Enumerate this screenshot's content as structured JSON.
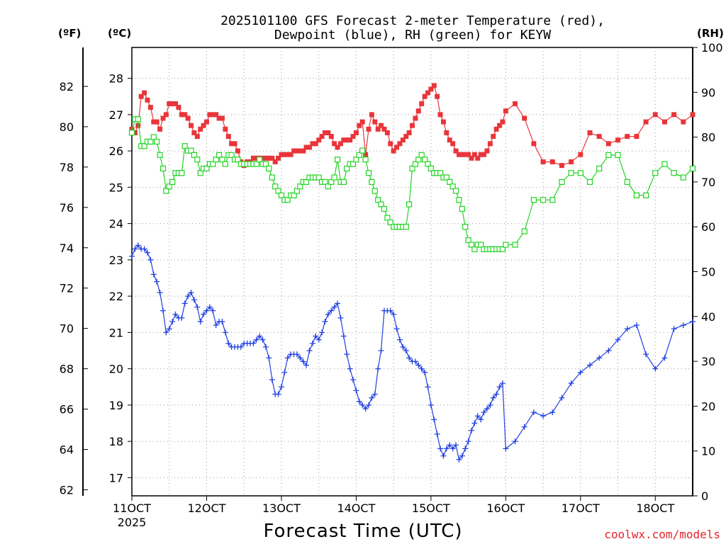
{
  "header": {
    "title_line1": "2025101100 GFS Forecast 2-meter Temperature (red),",
    "title_line2": "Dewpoint (blue), RH (green) for KEYW"
  },
  "axes": {
    "left_unit_f": "(ºF)",
    "left_unit_c": "(ºC)",
    "right_unit_rh": "(RH)",
    "x_label": "Forecast Time (UTC)",
    "year_label": "2025"
  },
  "footer": {
    "credit": "coolwx.com/models"
  },
  "colors": {
    "temperature": "#e8353a",
    "dewpoint": "#2040e0",
    "rh": "#22d422"
  },
  "chart_data": {
    "type": "line",
    "title": "2025101100 GFS Forecast 2-meter Temperature (red), Dewpoint (blue), RH (green) for KEYW",
    "xlabel": "Forecast Time (UTC)",
    "x_units": "days since 11 Oct 2025 00 UTC",
    "xlim": [
      0,
      7.5
    ],
    "x_ticks": [
      {
        "x": 0,
        "label": "11OCT"
      },
      {
        "x": 1,
        "label": "12OCT"
      },
      {
        "x": 2,
        "label": "13OCT"
      },
      {
        "x": 3,
        "label": "14OCT"
      },
      {
        "x": 4,
        "label": "15OCT"
      },
      {
        "x": 5,
        "label": "16OCT"
      },
      {
        "x": 6,
        "label": "17OCT"
      },
      {
        "x": 7,
        "label": "18OCT"
      }
    ],
    "y_celsius": {
      "ylim": [
        16.5,
        28.85
      ],
      "ticks": [
        17,
        18,
        19,
        20,
        21,
        22,
        23,
        24,
        25,
        26,
        27,
        28
      ]
    },
    "y_fahrenheit": {
      "ticks": [
        62,
        64,
        66,
        68,
        70,
        72,
        74,
        76,
        78,
        80,
        82
      ]
    },
    "y_rh": {
      "ylim": [
        0,
        100
      ],
      "ticks": [
        0,
        10,
        20,
        30,
        40,
        50,
        60,
        70,
        80,
        90,
        100
      ]
    },
    "series": [
      {
        "name": "Temperature",
        "units": "C",
        "marker": "filled-square",
        "x": [
          0,
          0.042,
          0.083,
          0.125,
          0.167,
          0.208,
          0.25,
          0.292,
          0.333,
          0.375,
          0.417,
          0.458,
          0.5,
          0.542,
          0.583,
          0.625,
          0.667,
          0.708,
          0.75,
          0.792,
          0.833,
          0.875,
          0.917,
          0.958,
          1.0,
          1.042,
          1.083,
          1.125,
          1.167,
          1.208,
          1.25,
          1.292,
          1.333,
          1.375,
          1.417,
          1.458,
          1.5,
          1.542,
          1.583,
          1.625,
          1.667,
          1.708,
          1.75,
          1.792,
          1.833,
          1.875,
          1.917,
          1.958,
          2.0,
          2.042,
          2.083,
          2.125,
          2.167,
          2.208,
          2.25,
          2.292,
          2.333,
          2.375,
          2.417,
          2.458,
          2.5,
          2.542,
          2.583,
          2.625,
          2.667,
          2.708,
          2.75,
          2.792,
          2.833,
          2.875,
          2.917,
          2.958,
          3.0,
          3.042,
          3.083,
          3.125,
          3.167,
          3.208,
          3.25,
          3.292,
          3.333,
          3.375,
          3.417,
          3.458,
          3.5,
          3.542,
          3.583,
          3.625,
          3.667,
          3.708,
          3.75,
          3.792,
          3.833,
          3.875,
          3.917,
          3.958,
          4.0,
          4.042,
          4.083,
          4.125,
          4.167,
          4.208,
          4.25,
          4.292,
          4.333,
          4.375,
          4.417,
          4.458,
          4.5,
          4.542,
          4.583,
          4.625,
          4.667,
          4.708,
          4.75,
          4.792,
          4.833,
          4.875,
          4.917,
          4.958,
          5.0,
          5.125,
          5.25,
          5.375,
          5.5,
          5.625,
          5.75,
          5.875,
          6.0,
          6.125,
          6.25,
          6.375,
          6.5,
          6.625,
          6.75,
          6.875,
          7.0,
          7.125,
          7.25,
          7.375,
          7.5
        ],
        "values": [
          26.6,
          26.5,
          26.7,
          27.5,
          27.6,
          27.4,
          27.2,
          26.8,
          26.8,
          26.6,
          26.9,
          27.0,
          27.3,
          27.3,
          27.3,
          27.2,
          27.0,
          27.0,
          26.9,
          26.7,
          26.5,
          26.4,
          26.6,
          26.7,
          26.8,
          27.0,
          27.0,
          27.0,
          26.9,
          26.9,
          26.6,
          26.4,
          26.2,
          26.2,
          26.0,
          25.7,
          25.6,
          25.7,
          25.7,
          25.8,
          25.8,
          25.8,
          25.8,
          25.8,
          25.8,
          25.8,
          25.7,
          25.8,
          25.9,
          25.9,
          25.9,
          25.9,
          26.0,
          26.0,
          26.0,
          26.0,
          26.1,
          26.1,
          26.2,
          26.2,
          26.3,
          26.4,
          26.5,
          26.5,
          26.4,
          26.2,
          26.1,
          26.2,
          26.3,
          26.3,
          26.3,
          26.4,
          26.5,
          26.7,
          26.8,
          25.9,
          26.6,
          27.0,
          26.8,
          26.6,
          26.7,
          26.6,
          26.5,
          26.2,
          26.0,
          26.1,
          26.2,
          26.3,
          26.4,
          26.5,
          26.7,
          26.9,
          27.1,
          27.3,
          27.5,
          27.6,
          27.7,
          27.8,
          27.5,
          27.0,
          26.8,
          26.5,
          26.3,
          26.2,
          26.0,
          25.9,
          25.9,
          25.9,
          25.9,
          25.8,
          25.9,
          25.8,
          25.9,
          25.9,
          26.0,
          26.2,
          26.4,
          26.6,
          26.7,
          26.8,
          27.1,
          27.3,
          26.9,
          26.2,
          25.7,
          25.7,
          25.6,
          25.7,
          25.9,
          26.5,
          26.4,
          26.2,
          26.3,
          26.4,
          26.4,
          26.8,
          27.0,
          26.8,
          27.0,
          26.8,
          27.0
        ]
      },
      {
        "name": "Dewpoint",
        "units": "C",
        "marker": "plus",
        "x": [
          0,
          0.042,
          0.083,
          0.125,
          0.167,
          0.208,
          0.25,
          0.292,
          0.333,
          0.375,
          0.417,
          0.458,
          0.5,
          0.542,
          0.583,
          0.625,
          0.667,
          0.708,
          0.75,
          0.792,
          0.833,
          0.875,
          0.917,
          0.958,
          1.0,
          1.042,
          1.083,
          1.125,
          1.167,
          1.208,
          1.25,
          1.292,
          1.333,
          1.375,
          1.417,
          1.458,
          1.5,
          1.542,
          1.583,
          1.625,
          1.667,
          1.708,
          1.75,
          1.792,
          1.833,
          1.875,
          1.917,
          1.958,
          2.0,
          2.042,
          2.083,
          2.125,
          2.167,
          2.208,
          2.25,
          2.292,
          2.333,
          2.375,
          2.417,
          2.458,
          2.5,
          2.542,
          2.583,
          2.625,
          2.667,
          2.708,
          2.75,
          2.792,
          2.833,
          2.875,
          2.917,
          2.958,
          3.0,
          3.042,
          3.083,
          3.125,
          3.167,
          3.208,
          3.25,
          3.292,
          3.333,
          3.375,
          3.417,
          3.458,
          3.5,
          3.542,
          3.583,
          3.625,
          3.667,
          3.708,
          3.75,
          3.792,
          3.833,
          3.875,
          3.917,
          3.958,
          4.0,
          4.042,
          4.083,
          4.125,
          4.167,
          4.208,
          4.25,
          4.292,
          4.333,
          4.375,
          4.417,
          4.458,
          4.5,
          4.542,
          4.583,
          4.625,
          4.667,
          4.708,
          4.75,
          4.792,
          4.833,
          4.875,
          4.917,
          4.958,
          5.0,
          5.125,
          5.25,
          5.375,
          5.5,
          5.625,
          5.75,
          5.875,
          6.0,
          6.125,
          6.25,
          6.375,
          6.5,
          6.625,
          6.75,
          6.875,
          7.0,
          7.125,
          7.25,
          7.375,
          7.5
        ],
        "values": [
          23.1,
          23.3,
          23.4,
          23.3,
          23.3,
          23.2,
          23.0,
          22.6,
          22.4,
          22.1,
          21.6,
          21.0,
          21.1,
          21.3,
          21.5,
          21.4,
          21.4,
          21.8,
          22.0,
          22.1,
          21.9,
          21.7,
          21.3,
          21.5,
          21.6,
          21.7,
          21.6,
          21.2,
          21.3,
          21.3,
          21.0,
          20.7,
          20.6,
          20.6,
          20.6,
          20.6,
          20.7,
          20.7,
          20.7,
          20.7,
          20.8,
          20.9,
          20.8,
          20.6,
          20.3,
          19.7,
          19.3,
          19.3,
          19.5,
          19.9,
          20.3,
          20.4,
          20.4,
          20.4,
          20.3,
          20.2,
          20.1,
          20.5,
          20.7,
          20.9,
          20.8,
          21.0,
          21.3,
          21.5,
          21.6,
          21.7,
          21.8,
          21.4,
          20.9,
          20.4,
          20.0,
          19.7,
          19.4,
          19.1,
          19.0,
          18.9,
          19.0,
          19.2,
          19.3,
          20.0,
          20.5,
          21.6,
          21.6,
          21.6,
          21.5,
          21.1,
          20.8,
          20.6,
          20.5,
          20.3,
          20.2,
          20.2,
          20.1,
          20.0,
          19.9,
          19.5,
          19.0,
          18.6,
          18.2,
          17.8,
          17.6,
          17.8,
          17.9,
          17.8,
          17.9,
          17.5,
          17.6,
          17.8,
          18.0,
          18.3,
          18.5,
          18.7,
          18.6,
          18.8,
          18.9,
          19.0,
          19.2,
          19.3,
          19.5,
          19.6,
          17.8,
          18.0,
          18.4,
          18.8,
          18.7,
          18.8,
          19.2,
          19.6,
          19.9,
          20.1,
          20.3,
          20.5,
          20.8,
          21.1,
          21.2,
          20.4,
          20.0,
          20.3,
          21.1,
          21.2,
          21.3
        ]
      },
      {
        "name": "RH",
        "units": "%",
        "marker": "open-square",
        "x": [
          0,
          0.042,
          0.083,
          0.125,
          0.167,
          0.208,
          0.25,
          0.292,
          0.333,
          0.375,
          0.417,
          0.458,
          0.5,
          0.542,
          0.583,
          0.625,
          0.667,
          0.708,
          0.75,
          0.792,
          0.833,
          0.875,
          0.917,
          0.958,
          1.0,
          1.042,
          1.083,
          1.125,
          1.167,
          1.208,
          1.25,
          1.292,
          1.333,
          1.375,
          1.417,
          1.458,
          1.5,
          1.542,
          1.583,
          1.625,
          1.667,
          1.708,
          1.75,
          1.792,
          1.833,
          1.875,
          1.917,
          1.958,
          2.0,
          2.042,
          2.083,
          2.125,
          2.167,
          2.208,
          2.25,
          2.292,
          2.333,
          2.375,
          2.417,
          2.458,
          2.5,
          2.542,
          2.583,
          2.625,
          2.667,
          2.708,
          2.75,
          2.792,
          2.833,
          2.875,
          2.917,
          2.958,
          3.0,
          3.042,
          3.083,
          3.125,
          3.167,
          3.208,
          3.25,
          3.292,
          3.333,
          3.375,
          3.417,
          3.458,
          3.5,
          3.542,
          3.583,
          3.625,
          3.667,
          3.708,
          3.75,
          3.792,
          3.833,
          3.875,
          3.917,
          3.958,
          4.0,
          4.042,
          4.083,
          4.125,
          4.167,
          4.208,
          4.25,
          4.292,
          4.333,
          4.375,
          4.417,
          4.458,
          4.5,
          4.542,
          4.583,
          4.625,
          4.667,
          4.708,
          4.75,
          4.792,
          4.833,
          4.875,
          4.917,
          4.958,
          5.0,
          5.125,
          5.25,
          5.375,
          5.5,
          5.625,
          5.75,
          5.875,
          6.0,
          6.125,
          6.25,
          6.375,
          6.5,
          6.625,
          6.75,
          6.875,
          7.0,
          7.125,
          7.25,
          7.375,
          7.5
        ],
        "values": [
          81,
          84,
          84,
          78,
          78,
          79,
          79,
          80,
          79,
          76,
          73,
          68,
          69,
          70,
          72,
          72,
          72,
          78,
          77,
          77,
          76,
          75,
          72,
          73,
          73,
          74,
          74,
          75,
          76,
          75,
          74,
          76,
          76,
          75,
          75,
          74,
          74,
          74,
          74,
          74,
          74,
          75,
          74,
          74,
          73,
          71,
          69,
          68,
          67,
          66,
          66,
          67,
          67,
          68,
          69,
          70,
          70,
          71,
          71,
          71,
          71,
          70,
          70,
          69,
          70,
          71,
          75,
          70,
          70,
          73,
          74,
          74,
          75,
          76,
          77,
          75,
          72,
          70,
          68,
          66,
          65,
          64,
          62,
          61,
          60,
          60,
          60,
          60,
          60,
          65,
          73,
          74,
          75,
          76,
          75,
          74,
          73,
          72,
          72,
          72,
          71,
          71,
          70,
          69,
          68,
          66,
          64,
          60,
          57,
          56,
          55,
          56,
          56,
          55,
          55,
          55,
          55,
          55,
          55,
          55,
          56,
          56,
          59,
          66,
          66,
          66,
          70,
          72,
          72,
          70,
          73,
          76,
          76,
          70,
          67,
          67,
          72,
          74,
          72,
          71,
          73
        ]
      }
    ]
  }
}
